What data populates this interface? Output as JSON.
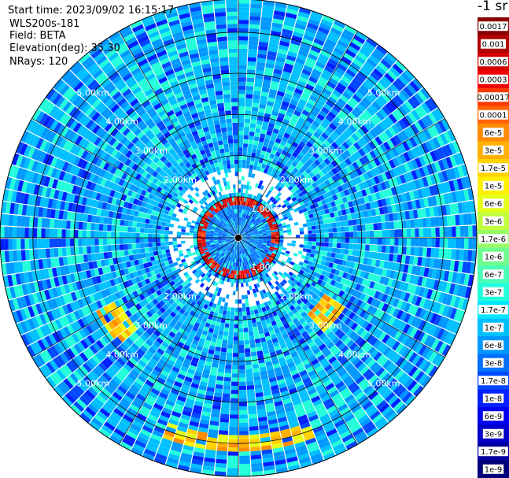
{
  "info": {
    "start_time": "Start time: 2023/09/02 16:15:17",
    "instrument": "WLS200s-181",
    "field": "Field: BETA",
    "elevation": "Elevation(deg): 35.30",
    "nrays": "NRays: 120"
  },
  "colorbar": {
    "unit": "-1 sr",
    "labels": [
      "0.0017",
      "0.001",
      "0.0006",
      "0.0003",
      "0.00017",
      "0.0001",
      "6e-5",
      "3e-5",
      "1.7e-5",
      "1e-5",
      "6e-6",
      "3e-6",
      "1.7e-6",
      "1e-6",
      "6e-7",
      "3e-7",
      "1.7e-7",
      "1e-7",
      "6e-8",
      "3e-8",
      "1.7e-8",
      "1e-8",
      "6e-9",
      "3e-9",
      "1.7e-9",
      "1e-9"
    ],
    "colors": [
      "#8b0000",
      "#b00000",
      "#d40000",
      "#f00000",
      "#ff3a00",
      "#ff6400",
      "#ff8c00",
      "#ffb000",
      "#ffd200",
      "#fff000",
      "#e6ff1a",
      "#c0ff40",
      "#98ff66",
      "#70ff8e",
      "#4affb4",
      "#22ffda",
      "#00e8ff",
      "#00c0ff",
      "#0098ff",
      "#0070ff",
      "#0048ff",
      "#0020ff",
      "#0000f0",
      "#0000c8",
      "#0000a0",
      "#000078"
    ]
  },
  "chart_data": {
    "type": "heatmap",
    "projection": "polar-ppi",
    "field": "BETA",
    "max_range_km": 5.8,
    "rays": 120,
    "range_rings": [
      {
        "km": 1,
        "label": "1.00km"
      },
      {
        "km": 2,
        "label": "2.00km"
      },
      {
        "km": 3,
        "label": "3.00km"
      },
      {
        "km": 4,
        "label": "4.00km"
      },
      {
        "km": 5,
        "label": "5.00km"
      }
    ],
    "ring_label_positions": {
      "1": [
        "ne",
        "se"
      ],
      "2": [
        "nw",
        "ne",
        "se",
        "sw"
      ],
      "3": [
        "nw",
        "ne",
        "se",
        "sw"
      ],
      "4": [
        "nw",
        "ne",
        "se",
        "sw"
      ],
      "5": [
        "nw",
        "ne",
        "se",
        "sw"
      ]
    },
    "azimuth_spokes_deg": [
      0,
      30,
      60,
      90,
      120,
      150,
      180,
      210,
      240,
      270,
      300,
      330
    ],
    "dominant_value": "1e-7 to 3e-7",
    "features": [
      {
        "name": "aerosol ring",
        "range_km": 0.9,
        "value": "0.0003 to 0.001"
      },
      {
        "name": "south arc",
        "range_km": 5.0,
        "azimuth_deg": [
          160,
          200
        ],
        "value": "1e-5 to 6e-5"
      },
      {
        "name": "southeast patch",
        "range_km": 2.8,
        "azimuth_deg": 130,
        "value": "1e-5 to 3e-5"
      },
      {
        "name": "southwest patch",
        "range_km": 3.6,
        "azimuth_deg": 235,
        "value": "1e-5 to 3e-5"
      }
    ]
  }
}
